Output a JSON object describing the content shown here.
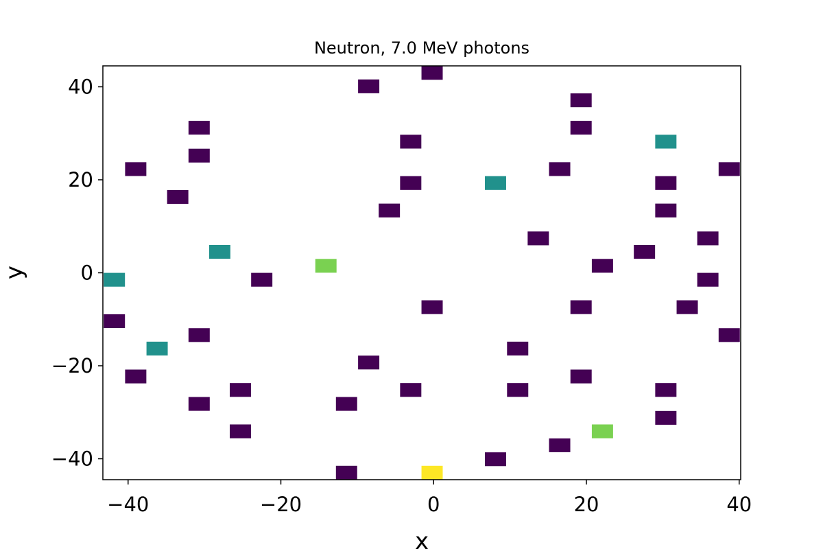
{
  "chart_data": {
    "type": "heatmap",
    "title": "Neutron, 7.0 MeV photons",
    "xlabel": "x",
    "ylabel": "y",
    "xlim": [
      -43.3,
      40.2
    ],
    "ylim": [
      -44.5,
      44.5
    ],
    "xticks": [
      -40,
      -20,
      0,
      20,
      40
    ],
    "xtick_labels": [
      "−40",
      "−20",
      "0",
      "20",
      "40"
    ],
    "yticks": [
      -40,
      -20,
      0,
      20,
      40
    ],
    "ytick_labels": [
      "−40",
      "−20",
      "0",
      "20",
      "40"
    ],
    "grid": false,
    "bin_size": [
      2.78,
      2.97
    ],
    "colormap": "viridis",
    "color_scale": {
      "low": "#440154",
      "mid": "#21918c",
      "high": "#7ad151",
      "max": "#fde725"
    },
    "cells": [
      {
        "x": -0.2,
        "y": 43.0,
        "v": 1
      },
      {
        "x": -8.5,
        "y": 40.1,
        "v": 1
      },
      {
        "x": 19.3,
        "y": 37.1,
        "v": 1
      },
      {
        "x": -30.7,
        "y": 31.2,
        "v": 1
      },
      {
        "x": 19.3,
        "y": 31.2,
        "v": 1
      },
      {
        "x": -3.0,
        "y": 28.2,
        "v": 1
      },
      {
        "x": 30.4,
        "y": 28.2,
        "v": 2
      },
      {
        "x": -30.7,
        "y": 25.2,
        "v": 1
      },
      {
        "x": -39.0,
        "y": 22.3,
        "v": 1
      },
      {
        "x": 16.5,
        "y": 22.3,
        "v": 1
      },
      {
        "x": 38.7,
        "y": 22.3,
        "v": 1
      },
      {
        "x": -3.0,
        "y": 19.3,
        "v": 1
      },
      {
        "x": 8.1,
        "y": 19.3,
        "v": 2
      },
      {
        "x": 30.4,
        "y": 19.3,
        "v": 1
      },
      {
        "x": -33.5,
        "y": 16.3,
        "v": 1
      },
      {
        "x": -5.8,
        "y": 13.4,
        "v": 1
      },
      {
        "x": 30.4,
        "y": 13.4,
        "v": 1
      },
      {
        "x": 13.7,
        "y": 7.4,
        "v": 1
      },
      {
        "x": 35.9,
        "y": 7.4,
        "v": 1
      },
      {
        "x": -28.0,
        "y": 4.5,
        "v": 2
      },
      {
        "x": 27.6,
        "y": 4.5,
        "v": 1
      },
      {
        "x": -14.1,
        "y": 1.5,
        "v": 3
      },
      {
        "x": 22.1,
        "y": 1.5,
        "v": 1
      },
      {
        "x": -41.8,
        "y": -1.5,
        "v": 2
      },
      {
        "x": -22.5,
        "y": -1.5,
        "v": 1
      },
      {
        "x": 35.9,
        "y": -1.5,
        "v": 1
      },
      {
        "x": -0.2,
        "y": -7.4,
        "v": 1
      },
      {
        "x": 19.3,
        "y": -7.4,
        "v": 1
      },
      {
        "x": 33.2,
        "y": -7.4,
        "v": 1
      },
      {
        "x": -41.8,
        "y": -10.4,
        "v": 1
      },
      {
        "x": -30.7,
        "y": -13.4,
        "v": 1
      },
      {
        "x": 38.7,
        "y": -13.4,
        "v": 1
      },
      {
        "x": -36.2,
        "y": -16.3,
        "v": 2
      },
      {
        "x": 11.0,
        "y": -16.3,
        "v": 1
      },
      {
        "x": -8.5,
        "y": -19.3,
        "v": 1
      },
      {
        "x": -39.0,
        "y": -22.3,
        "v": 1
      },
      {
        "x": 19.3,
        "y": -22.3,
        "v": 1
      },
      {
        "x": -25.3,
        "y": -25.2,
        "v": 1
      },
      {
        "x": -3.0,
        "y": -25.2,
        "v": 1
      },
      {
        "x": 11.0,
        "y": -25.2,
        "v": 1
      },
      {
        "x": 30.4,
        "y": -25.2,
        "v": 1
      },
      {
        "x": -30.7,
        "y": -28.2,
        "v": 1
      },
      {
        "x": -11.4,
        "y": -28.2,
        "v": 1
      },
      {
        "x": 30.4,
        "y": -31.2,
        "v": 1
      },
      {
        "x": -25.3,
        "y": -34.1,
        "v": 1
      },
      {
        "x": 22.1,
        "y": -34.1,
        "v": 3
      },
      {
        "x": 16.5,
        "y": -37.1,
        "v": 1
      },
      {
        "x": 8.1,
        "y": -40.1,
        "v": 1
      },
      {
        "x": -11.4,
        "y": -43.0,
        "v": 1
      },
      {
        "x": -0.2,
        "y": -43.0,
        "v": 4
      }
    ]
  }
}
